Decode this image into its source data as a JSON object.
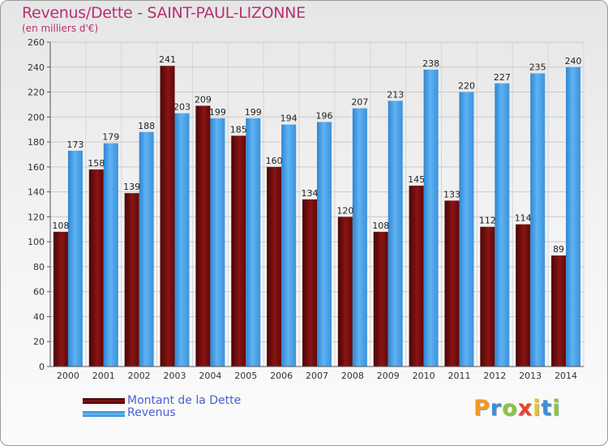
{
  "title": "Revenus/Dette - SAINT-PAUL-LIZONNE",
  "subtitle": "(en milliers d'€)",
  "chart_data": {
    "type": "bar",
    "categories": [
      "2000",
      "2001",
      "2002",
      "2003",
      "2004",
      "2005",
      "2006",
      "2007",
      "2008",
      "2009",
      "2010",
      "2011",
      "2012",
      "2013",
      "2014"
    ],
    "series": [
      {
        "name": "Montant de la Dette",
        "values": [
          108,
          158,
          139,
          241,
          209,
          185,
          160,
          134,
          120,
          108,
          145,
          133,
          112,
          114,
          89
        ],
        "color": "#7b0d0d"
      },
      {
        "name": "Revenus",
        "values": [
          173,
          179,
          188,
          203,
          199,
          199,
          194,
          196,
          207,
          213,
          238,
          220,
          227,
          235,
          240
        ],
        "color": "#3d9be6"
      }
    ],
    "ylim": [
      0,
      260
    ],
    "yticks": [
      0,
      20,
      40,
      60,
      80,
      100,
      120,
      140,
      160,
      180,
      200,
      220,
      240,
      260
    ],
    "grid": true,
    "legend_position": "bottom-left"
  },
  "legend": {
    "items": [
      {
        "label": "Montant de la Dette"
      },
      {
        "label": "Revenus"
      }
    ]
  },
  "logo": {
    "letters": [
      "P",
      "r",
      "o",
      "x",
      "i",
      "t",
      "i"
    ],
    "colors": [
      "#f39a1e",
      "#3d8fd8",
      "#8cc63f",
      "#e8432d",
      "#f0c419",
      "#3d8fd8",
      "#8cc63f"
    ]
  }
}
